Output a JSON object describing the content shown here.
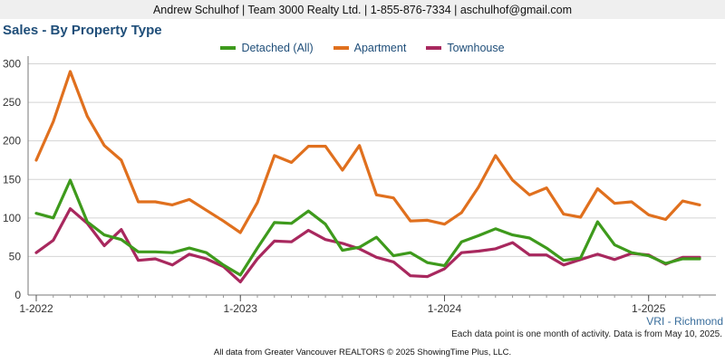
{
  "header": {
    "contact": "Andrew Schulhof | Team 3000 Realty Ltd. | 1-855-876-7334 | aschulhof@gmail.com"
  },
  "chart_data": {
    "type": "line",
    "title": "Sales - By Property Type",
    "x": [
      "2022-01",
      "2022-02",
      "2022-03",
      "2022-04",
      "2022-05",
      "2022-06",
      "2022-07",
      "2022-08",
      "2022-09",
      "2022-10",
      "2022-11",
      "2022-12",
      "2023-01",
      "2023-02",
      "2023-03",
      "2023-04",
      "2023-05",
      "2023-06",
      "2023-07",
      "2023-08",
      "2023-09",
      "2023-10",
      "2023-11",
      "2023-12",
      "2024-01",
      "2024-02",
      "2024-03",
      "2024-04",
      "2024-05",
      "2024-06",
      "2024-07",
      "2024-08",
      "2024-09",
      "2024-10",
      "2024-11",
      "2024-12",
      "2025-01",
      "2025-02",
      "2025-03",
      "2025-04"
    ],
    "series": [
      {
        "name": "Detached (All)",
        "color": "#3e9a1c",
        "values": [
          106,
          100,
          149,
          95,
          78,
          72,
          56,
          56,
          55,
          61,
          55,
          39,
          26,
          61,
          94,
          93,
          109,
          92,
          58,
          62,
          75,
          51,
          55,
          42,
          38,
          69,
          77,
          86,
          78,
          74,
          61,
          45,
          48,
          95,
          65,
          55,
          51,
          41,
          47,
          47
        ]
      },
      {
        "name": "Apartment",
        "color": "#e0701e",
        "values": [
          175,
          225,
          290,
          232,
          194,
          175,
          121,
          121,
          117,
          124,
          110,
          96,
          81,
          120,
          181,
          172,
          193,
          193,
          162,
          194,
          130,
          126,
          96,
          97,
          92,
          107,
          140,
          181,
          149,
          130,
          139,
          105,
          101,
          138,
          119,
          121,
          104,
          98,
          122,
          117
        ]
      },
      {
        "name": "Townhouse",
        "color": "#a8285e",
        "values": [
          55,
          71,
          112,
          93,
          64,
          85,
          45,
          47,
          39,
          53,
          47,
          37,
          17,
          47,
          70,
          69,
          84,
          72,
          67,
          60,
          49,
          43,
          25,
          24,
          34,
          55,
          57,
          60,
          68,
          52,
          52,
          39,
          46,
          53,
          46,
          54,
          52,
          40,
          49,
          49
        ]
      }
    ],
    "yticks": [
      0,
      50,
      100,
      150,
      200,
      250,
      300
    ],
    "xticks": [
      {
        "label": "1-2022",
        "x": "2022-01"
      },
      {
        "label": "1-2023",
        "x": "2023-01"
      },
      {
        "label": "1-2024",
        "x": "2024-01"
      },
      {
        "label": "1-2025",
        "x": "2025-01"
      }
    ],
    "ylim": [
      0,
      310
    ],
    "xlabel": "",
    "ylabel": "",
    "grid": true,
    "legend": "top-center"
  },
  "region": "VRI - Richmond",
  "note": "Each data point is one month of activity. Data is from May 10, 2025.",
  "footer": "All data from Greater Vancouver REALTORS © 2025 ShowingTime Plus, LLC."
}
